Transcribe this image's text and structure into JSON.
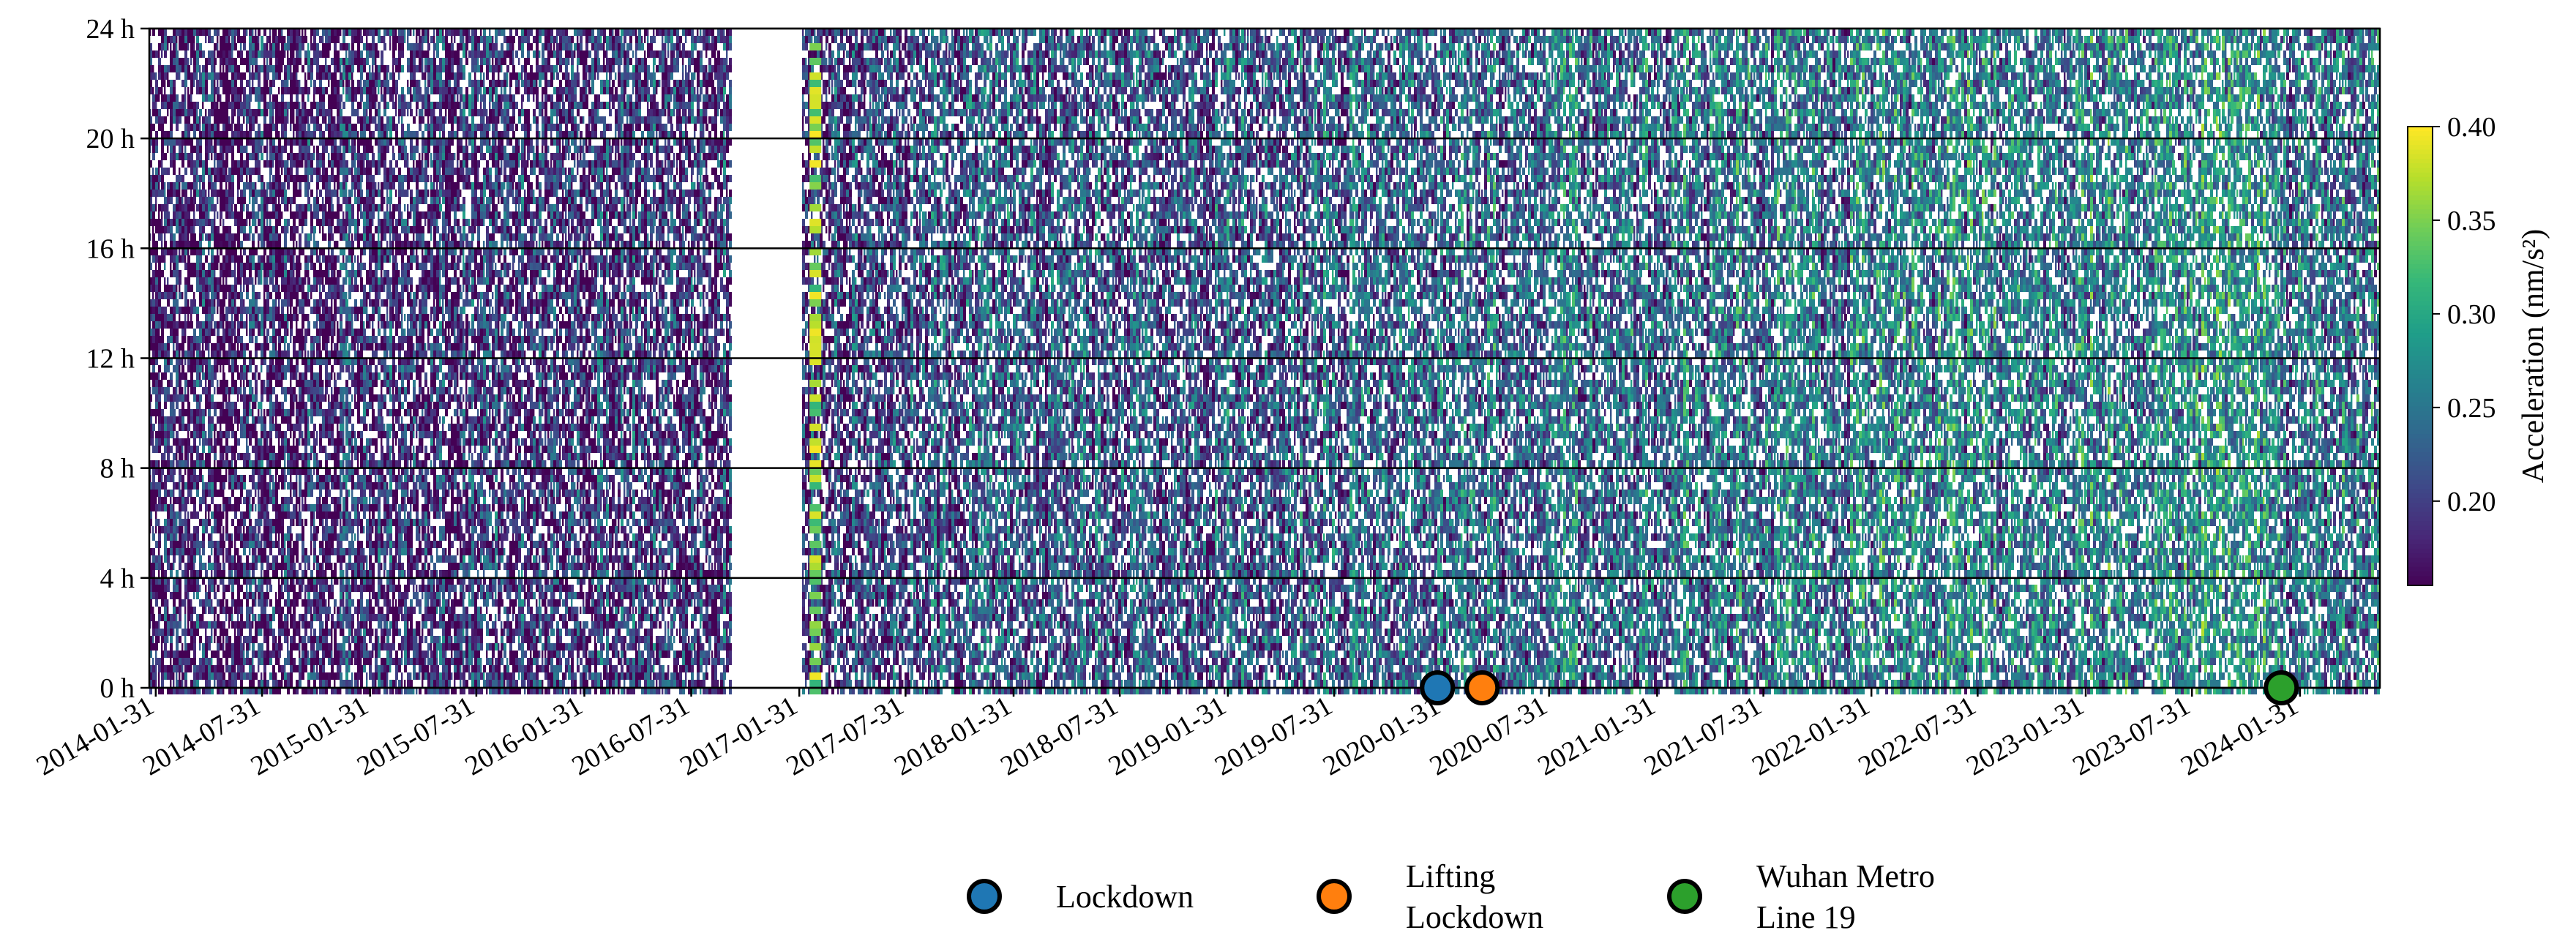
{
  "chart_data": {
    "type": "heatmap",
    "title": "",
    "xlabel": "",
    "ylabel": "",
    "x_tick_labels": [
      "2014-01-31",
      "2014-07-31",
      "2015-01-31",
      "2015-07-31",
      "2016-01-31",
      "2016-07-31",
      "2017-01-31",
      "2017-07-31",
      "2018-01-31",
      "2018-07-31",
      "2019-01-31",
      "2019-07-31",
      "2020-01-31",
      "2020-07-31",
      "2021-01-31",
      "2021-07-31",
      "2022-01-31",
      "2022-07-31",
      "2023-01-31",
      "2023-07-31",
      "2024-01-31"
    ],
    "x_range": [
      "2014-01-20",
      "2024-06-15"
    ],
    "y_tick_labels": [
      "0 h",
      "4 h",
      "8 h",
      "12 h",
      "16 h",
      "20 h",
      "24 h"
    ],
    "y_range": [
      0,
      24
    ],
    "grid": "horizontal at each 4 h",
    "data_gap": [
      "2016-10-10",
      "2017-01-31"
    ],
    "colormap": "viridis",
    "colorbar": {
      "label": "Acceleration (nm/s²)",
      "ticks": [
        "0.20",
        "0.25",
        "0.30",
        "0.35",
        "0.40"
      ],
      "range": [
        0.155,
        0.4
      ]
    },
    "events": [
      {
        "name": "Lockdown",
        "date": "2020-01-23",
        "color": "#1f77b4"
      },
      {
        "name": "Lifting Lockdown",
        "date": "2020-04-08",
        "color": "#ff7f0e"
      },
      {
        "name": "Wuhan Metro Line 19",
        "date": "2023-12-30",
        "color": "#2ca02c"
      }
    ],
    "legend": {
      "placement": "bottom-center",
      "entries": [
        {
          "text_lines": [
            "Lockdown"
          ],
          "color": "#1f77b4"
        },
        {
          "text_lines": [
            "Lifting",
            "Lockdown"
          ],
          "color": "#ff7f0e"
        },
        {
          "text_lines": [
            "Wuhan Metro",
            "Line 19"
          ],
          "color": "#2ca02c"
        }
      ]
    }
  }
}
